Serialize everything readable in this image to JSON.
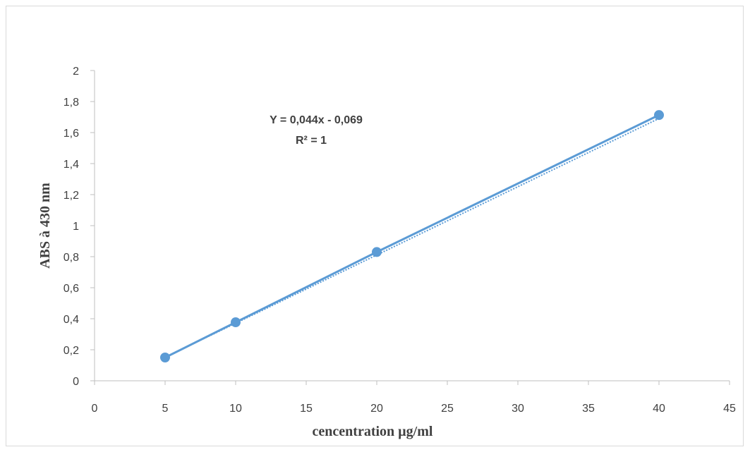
{
  "chart_data": {
    "type": "scatter",
    "x": [
      5,
      10,
      20,
      40
    ],
    "y": [
      0.15,
      0.377,
      0.83,
      1.713
    ],
    "xlabel": "cencentration µg/ml",
    "ylabel": "ABS à 430 nm",
    "xlim": [
      0,
      45
    ],
    "ylim": [
      0,
      2
    ],
    "x_ticks": [
      "0",
      "5",
      "10",
      "15",
      "20",
      "25",
      "30",
      "35",
      "40",
      "45"
    ],
    "y_ticks": [
      "0",
      "0,2",
      "0,4",
      "0,6",
      "0,8",
      "1",
      "1,2",
      "1,4",
      "1,6",
      "1,8",
      "2"
    ],
    "grid": false,
    "series_color": "#5b9bd5",
    "trendline": {
      "type": "linear",
      "slope": 0.044,
      "intercept": -0.069,
      "equation_label": "Y =  0,044x - 0,069",
      "r2_label": "R² = 1"
    }
  }
}
